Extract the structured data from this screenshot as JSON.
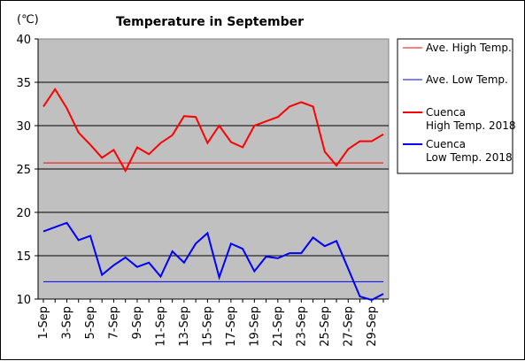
{
  "chart_data": {
    "type": "line",
    "title": "Temperature in September",
    "ylabel": "(℃)",
    "xlabel": "",
    "ylim": [
      10,
      40
    ],
    "yticks": [
      10,
      15,
      20,
      25,
      30,
      35,
      40
    ],
    "grid": true,
    "legend_position": "right",
    "plot_background": "#c0c0c0",
    "x": [
      "1-Sep",
      "2-Sep",
      "3-Sep",
      "4-Sep",
      "5-Sep",
      "6-Sep",
      "7-Sep",
      "8-Sep",
      "9-Sep",
      "10-Sep",
      "11-Sep",
      "12-Sep",
      "13-Sep",
      "14-Sep",
      "15-Sep",
      "16-Sep",
      "17-Sep",
      "18-Sep",
      "19-Sep",
      "20-Sep",
      "21-Sep",
      "22-Sep",
      "23-Sep",
      "24-Sep",
      "25-Sep",
      "26-Sep",
      "27-Sep",
      "28-Sep",
      "29-Sep",
      "30-Sep"
    ],
    "x_tick_labels": [
      "1-Sep",
      "3-Sep",
      "5-Sep",
      "7-Sep",
      "9-Sep",
      "11-Sep",
      "13-Sep",
      "15-Sep",
      "17-Sep",
      "19-Sep",
      "21-Sep",
      "23-Sep",
      "25-Sep",
      "27-Sep",
      "29-Sep"
    ],
    "series": [
      {
        "name": "Ave. High Temp.",
        "color": "#ff0000",
        "style": "thin",
        "values": [
          25.7,
          25.7,
          25.7,
          25.7,
          25.7,
          25.7,
          25.7,
          25.7,
          25.7,
          25.7,
          25.7,
          25.7,
          25.7,
          25.7,
          25.7,
          25.7,
          25.7,
          25.7,
          25.7,
          25.7,
          25.7,
          25.7,
          25.7,
          25.7,
          25.7,
          25.7,
          25.7,
          25.7,
          25.7,
          25.7
        ]
      },
      {
        "name": "Ave. Low Temp.",
        "color": "#0000ff",
        "style": "thin",
        "values": [
          12.0,
          12.0,
          12.0,
          12.0,
          12.0,
          12.0,
          12.0,
          12.0,
          12.0,
          12.0,
          12.0,
          12.0,
          12.0,
          12.0,
          12.0,
          12.0,
          12.0,
          12.0,
          12.0,
          12.0,
          12.0,
          12.0,
          12.0,
          12.0,
          12.0,
          12.0,
          12.0,
          12.0,
          12.0,
          12.0
        ]
      },
      {
        "name": "Cuenca High Temp. 2018",
        "legend_lines": [
          "Cuenca",
          "High Temp. 2018"
        ],
        "color": "#ff0000",
        "style": "thick",
        "values": [
          32.2,
          34.2,
          32.0,
          29.2,
          27.8,
          26.3,
          27.2,
          24.8,
          27.5,
          26.7,
          28.0,
          28.9,
          31.1,
          31.0,
          28.0,
          30.0,
          28.1,
          27.5,
          30.0,
          30.5,
          31.0,
          32.2,
          32.7,
          32.2,
          27.0,
          25.4,
          27.3,
          28.2,
          28.2,
          29.0
        ]
      },
      {
        "name": "Cuenca Low Temp. 2018",
        "legend_lines": [
          "Cuenca",
          "Low Temp. 2018"
        ],
        "color": "#0000ff",
        "style": "thick",
        "values": [
          17.8,
          18.3,
          18.8,
          16.8,
          17.3,
          12.8,
          13.9,
          14.8,
          13.7,
          14.2,
          12.6,
          15.5,
          14.2,
          16.4,
          17.6,
          12.5,
          16.4,
          15.8,
          13.2,
          14.9,
          14.7,
          15.3,
          15.3,
          17.1,
          16.1,
          16.7,
          13.5,
          10.3,
          9.9,
          10.6
        ]
      }
    ]
  }
}
